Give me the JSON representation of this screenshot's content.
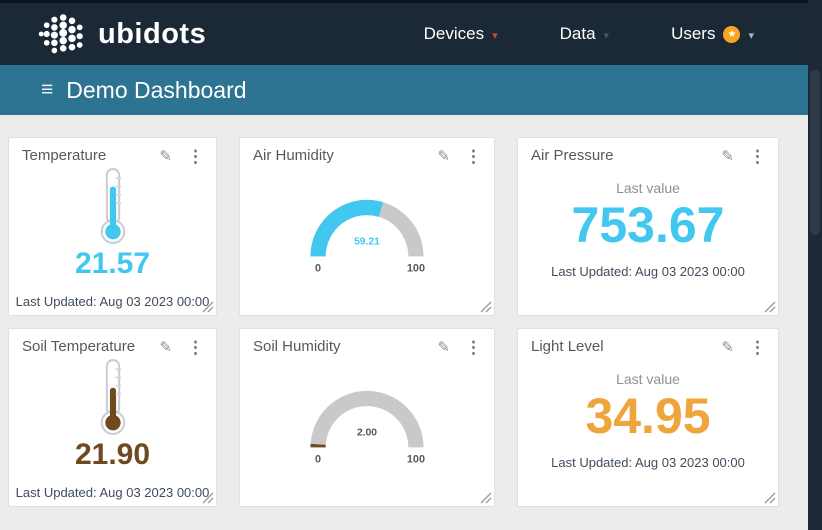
{
  "icons": {
    "pencil": "✎",
    "menu_dots": "⋮",
    "hamburger": "≡",
    "star": "★",
    "caret": "▾"
  },
  "colors": {
    "navbar_bg": "#1b2836",
    "subheader_bg": "#2d7392",
    "content_bg": "#ececec",
    "accent_cyan": "#41c7f0",
    "accent_brown": "#6d4a1f",
    "accent_orange": "#f0a43c",
    "gauge_track": "#c9c9c9"
  },
  "navbar": {
    "brand": "ubidots",
    "items": [
      {
        "label": "Devices",
        "caret_color": "#cf4436"
      },
      {
        "label": "Data",
        "caret_color": "#3c5a6e"
      },
      {
        "label": "Users",
        "caret_color": "#a9b6c1",
        "badge_color": "#f6a623"
      }
    ]
  },
  "header": {
    "title": "Demo Dashboard"
  },
  "widgets": [
    {
      "title": "Temperature",
      "type": "thermometer",
      "value": "21.57",
      "color": "#41c7f0",
      "updated": "Last Updated: Aug 03 2023 00:00"
    },
    {
      "title": "Air Humidity",
      "type": "gauge",
      "value": "59.21",
      "min": "0",
      "max": "100",
      "color": "#41c7f0",
      "value_color": "#41c7f0",
      "track_color": "#c9c9c9"
    },
    {
      "title": "Air Pressure",
      "type": "metric",
      "label": "Last value",
      "value": "753.67",
      "color": "#41c7f0",
      "updated": "Last Updated: Aug 03 2023 00:00"
    },
    {
      "title": "Soil Temperature",
      "type": "thermometer",
      "value": "21.90",
      "color": "#6d4a1f",
      "updated": "Last Updated: Aug 03 2023 00:00"
    },
    {
      "title": "Soil Humidity",
      "type": "gauge",
      "value": "2.00",
      "min": "0",
      "max": "100",
      "color": "#6d4a1f",
      "value_color": "#555555",
      "track_color": "#c9c9c9"
    },
    {
      "title": "Light Level",
      "type": "metric",
      "label": "Last value",
      "value": "34.95",
      "color": "#f0a43c",
      "updated": "Last Updated: Aug 03 2023 00:00"
    }
  ]
}
